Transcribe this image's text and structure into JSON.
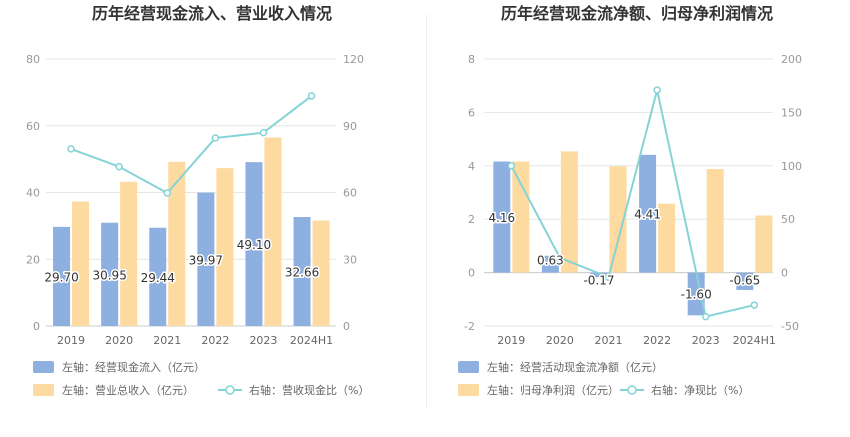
{
  "charts": [
    {
      "title": "历年经营现金流入、营业收入情况",
      "chart_data": {
        "type": "bar",
        "categories": [
          "2019",
          "2020",
          "2021",
          "2022",
          "2023",
          "2024H1"
        ],
        "left_axis": {
          "min": 0,
          "max": 80,
          "ticks": [
            "0",
            "20",
            "40",
            "60",
            "80"
          ]
        },
        "right_axis": {
          "min": 0,
          "max": 120,
          "ticks": [
            "0",
            "30",
            "60",
            "90",
            "120"
          ]
        },
        "series": [
          {
            "name": "左轴：经营现金流入（亿元）",
            "type": "bar",
            "axis": "left",
            "color": "#8eb0e0",
            "values": [
              29.7,
              30.95,
              29.44,
              39.97,
              49.1,
              32.66
            ],
            "labels": [
              "29.70",
              "30.95",
              "29.44",
              "39.97",
              "49.10",
              "32.66"
            ]
          },
          {
            "name": "左轴：营业总收入（亿元）",
            "type": "bar",
            "axis": "left",
            "color": "#fddaa0",
            "values": [
              37.3,
              43.2,
              49.2,
              47.3,
              56.5,
              31.6
            ]
          },
          {
            "name": "右轴：营收现金比（%）",
            "type": "line",
            "axis": "right",
            "color": "#86d3d6",
            "values": [
              79.6,
              71.6,
              59.8,
              84.5,
              86.9,
              103.4
            ]
          }
        ],
        "legend": "bottom-left",
        "grid": true
      }
    },
    {
      "title": "历年经营现金流净额、归母净利润情况",
      "chart_data": {
        "type": "bar",
        "categories": [
          "2019",
          "2020",
          "2021",
          "2022",
          "2023",
          "2024H1"
        ],
        "left_axis": {
          "min": -2,
          "max": 8,
          "ticks": [
            "-2",
            "0",
            "2",
            "4",
            "6",
            "8"
          ]
        },
        "right_axis": {
          "min": -50,
          "max": 200,
          "ticks": [
            "-50",
            "0",
            "50",
            "100",
            "150",
            "200"
          ]
        },
        "series": [
          {
            "name": "左轴：经营活动现金流净额（亿元）",
            "type": "bar",
            "axis": "left",
            "color": "#8eb0e0",
            "values": [
              4.16,
              0.63,
              -0.17,
              4.41,
              -1.6,
              -0.65
            ],
            "labels": [
              "4.16",
              "0.63",
              "-0.17",
              "4.41",
              "-1.60",
              "-0.65"
            ]
          },
          {
            "name": "左轴：归母净利润（亿元）",
            "type": "bar",
            "axis": "left",
            "color": "#fddaa0",
            "values": [
              4.16,
              4.54,
              3.98,
              2.58,
              3.88,
              2.14
            ]
          },
          {
            "name": "右轴：净现比（%）",
            "type": "line",
            "axis": "right",
            "color": "#86d3d6",
            "values": [
              100.0,
              13.9,
              -4.3,
              170.9,
              -41.2,
              -30.4
            ]
          }
        ],
        "legend": "bottom-left",
        "grid": true
      }
    }
  ]
}
